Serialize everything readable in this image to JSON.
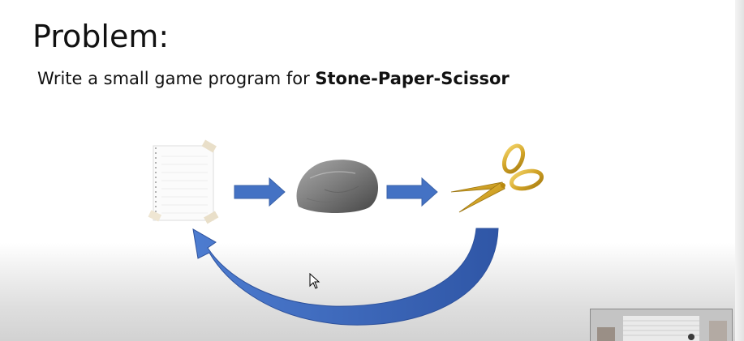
{
  "slide": {
    "title": "Problem:",
    "statement_prefix": "Write a small game program for ",
    "statement_bold": "Stone-Paper-Scissor"
  },
  "diagram": {
    "items": [
      {
        "name": "paper",
        "icon": "paper-sheet-icon"
      },
      {
        "name": "stone",
        "icon": "stone-icon"
      },
      {
        "name": "scissor",
        "icon": "scissors-icon"
      }
    ],
    "arrow_color": "#4472c4"
  },
  "overlay": {
    "cursor_icon": "mouse-pointer-icon",
    "webcam_icon": "webcam-preview"
  }
}
